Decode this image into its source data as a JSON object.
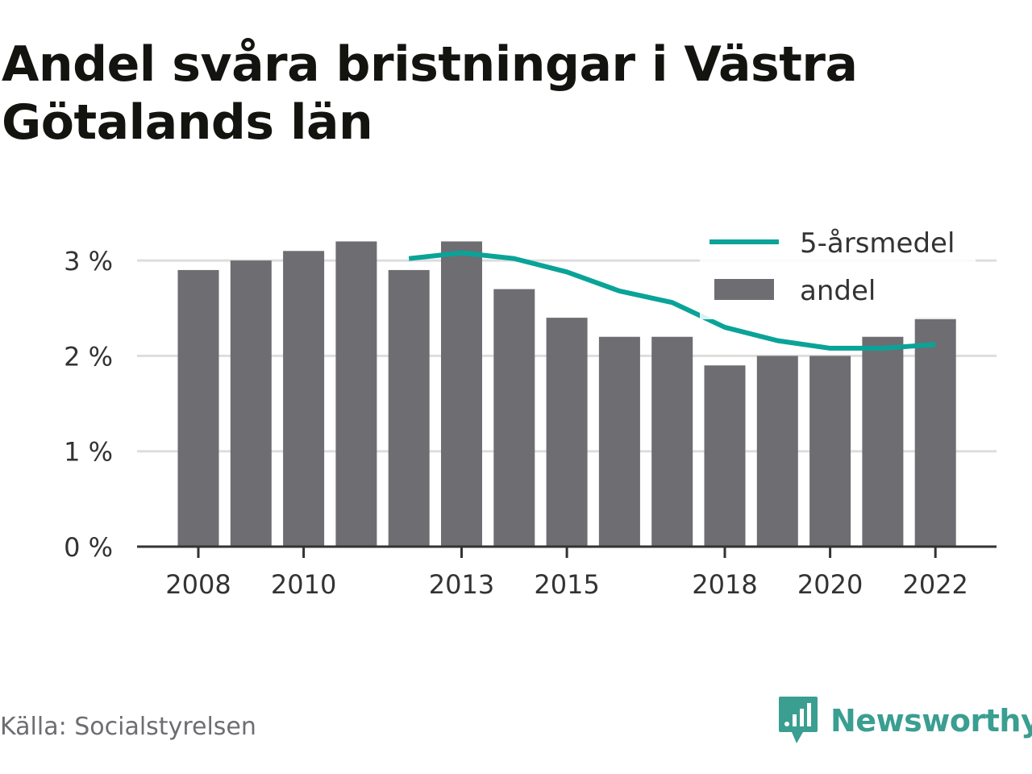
{
  "title": "Andel svåra bristningar i Västra Götalands län",
  "source": "Källa: Socialstyrelsen",
  "brand": {
    "name": "Newsworthy",
    "icon": "newsworthy-logo-icon",
    "color": "#3a9e91"
  },
  "colors": {
    "bar": "#6e6d72",
    "line": "#0aa398",
    "grid": "#dddddd",
    "axis": "#333333",
    "text": "#333333"
  },
  "chart_data": {
    "type": "bar",
    "x": [
      2008,
      2009,
      2010,
      2011,
      2012,
      2013,
      2014,
      2015,
      2016,
      2017,
      2018,
      2019,
      2020,
      2021,
      2022
    ],
    "x_tick_labels": [
      "2008",
      "2010",
      "2013",
      "2015",
      "2018",
      "2020",
      "2022"
    ],
    "y_tick_labels": [
      "0 %",
      "1 %",
      "2 %",
      "3 %"
    ],
    "ylim": [
      0,
      3.2
    ],
    "grid": "horizontal",
    "legend_position": "top-right",
    "series": [
      {
        "name": "andel",
        "type": "bar",
        "values": [
          2.9,
          3.0,
          3.1,
          3.2,
          2.9,
          3.2,
          2.7,
          2.4,
          2.2,
          2.2,
          1.9,
          2.0,
          2.0,
          2.2,
          2.4
        ]
      },
      {
        "name": "5-årsmedel",
        "type": "line",
        "values": [
          null,
          null,
          null,
          null,
          3.02,
          3.08,
          3.02,
          2.88,
          2.68,
          2.56,
          2.3,
          2.16,
          2.08,
          2.08,
          2.12
        ]
      }
    ]
  }
}
